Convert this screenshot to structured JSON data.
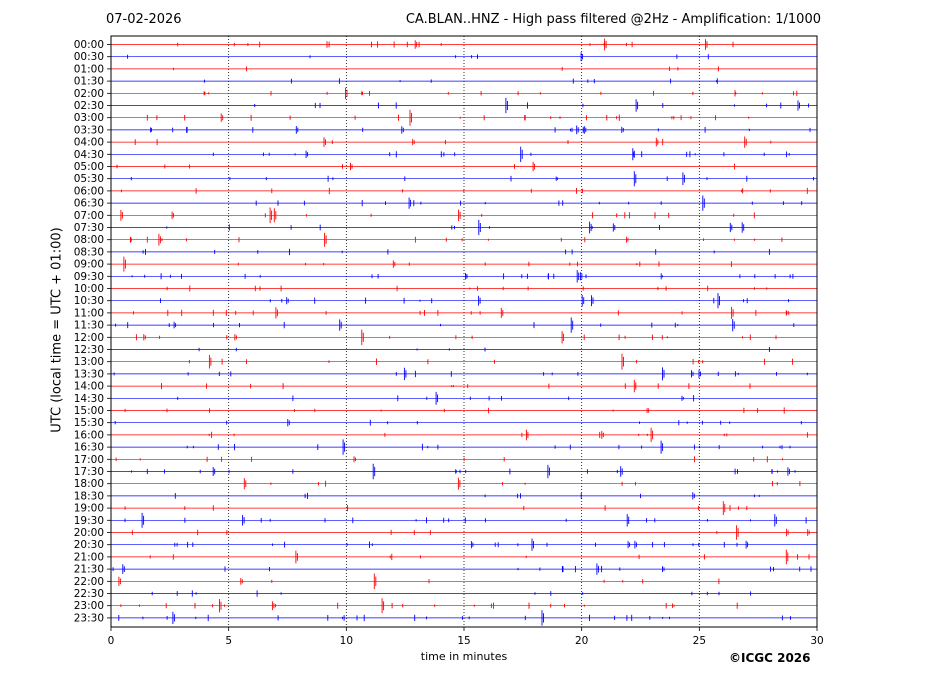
{
  "header": {
    "date": "07-02-2026",
    "title": "CA.BLAN..HNZ - High pass filtered @2Hz - Amplification: 1/1000"
  },
  "footer": {
    "copyright": "©ICGC 2026"
  },
  "chart_data": {
    "type": "line",
    "title": "CA.BLAN..HNZ - High pass filtered @2Hz - Amplification: 1/1000",
    "xlabel": "time in minutes",
    "ylabel": "UTC (local time = UTC + 01:00)",
    "xlim": [
      0,
      30
    ],
    "xticks": [
      0,
      5,
      10,
      15,
      20,
      25,
      30
    ],
    "vertical_grid": [
      5,
      10,
      15,
      20,
      25
    ],
    "grid_style": "dotted",
    "series_colors": [
      "#ff0000",
      "#0000ff"
    ],
    "traces": [
      "00:00",
      "00:30",
      "01:00",
      "01:30",
      "02:00",
      "02:30",
      "03:00",
      "03:30",
      "04:00",
      "04:30",
      "05:00",
      "05:30",
      "06:00",
      "06:30",
      "07:00",
      "07:30",
      "08:00",
      "08:30",
      "09:00",
      "09:30",
      "10:00",
      "10:30",
      "11:00",
      "11:30",
      "12:00",
      "12:30",
      "13:00",
      "13:30",
      "14:00",
      "14:30",
      "15:00",
      "15:30",
      "16:00",
      "16:30",
      "17:00",
      "17:30",
      "18:00",
      "18:30",
      "19:00",
      "19:30",
      "20:00",
      "20:30",
      "21:00",
      "21:30",
      "22:00",
      "22:30",
      "23:00",
      "23:30"
    ]
  }
}
